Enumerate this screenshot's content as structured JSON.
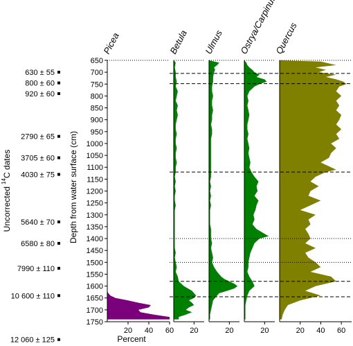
{
  "chart_data": {
    "type": "area",
    "title": "",
    "ylabel": "Depth from water surface (cm)",
    "xlabel": "Percent",
    "left_axis_label_prefix": "Uncorrected",
    "left_axis_label_super": "14",
    "left_axis_label_suffix": "C dates",
    "ylim": [
      650,
      1750
    ],
    "depth_ticks": [
      650,
      700,
      750,
      800,
      850,
      900,
      950,
      1000,
      1050,
      1100,
      1150,
      1200,
      1250,
      1300,
      1350,
      1400,
      1450,
      1500,
      1550,
      1600,
      1650,
      1700,
      1750
    ],
    "depth_tick_labels": [
      "650",
      "700",
      "750",
      "800",
      "850",
      "900",
      "950",
      "1000",
      "1050",
      "1100",
      "1150",
      "1200",
      "1250",
      "1300",
      "1350",
      "1400",
      "1450",
      "1500",
      "1550",
      "1600",
      "1650",
      "1700",
      "1750"
    ],
    "dates": [
      {
        "label": "630 ± 55",
        "depth": 700
      },
      {
        "label": "800 ± 60",
        "depth": 745
      },
      {
        "label": "920 ± 60",
        "depth": 790
      },
      {
        "label": "2790 ± 65",
        "depth": 970
      },
      {
        "label": "3705 ± 60",
        "depth": 1060
      },
      {
        "label": "4030 ± 75",
        "depth": 1130
      },
      {
        "label": "5640 ± 70",
        "depth": 1330
      },
      {
        "label": "6580 ± 80",
        "depth": 1420
      },
      {
        "label": "7990 ± 110",
        "depth": 1525
      },
      {
        "label": "10 600 ± 110",
        "depth": 1640
      },
      {
        "label": "12 060 ± 125",
        "depth": 1825
      }
    ],
    "horizontal_lines": [
      {
        "depth": 705,
        "style": "dashed"
      },
      {
        "depth": 748,
        "style": "dashed"
      },
      {
        "depth": 1120,
        "style": "dashed"
      },
      {
        "depth": 1400,
        "style": "dotted"
      },
      {
        "depth": 1500,
        "style": "dotted"
      },
      {
        "depth": 1580,
        "style": "dashed"
      },
      {
        "depth": 1645,
        "style": "dashed"
      }
    ],
    "series": [
      {
        "name": "Picea",
        "color": "#7b007b",
        "xlim": [
          0,
          60
        ],
        "ticks": [
          20,
          40,
          60
        ],
        "tick_labels": [
          "20",
          "40",
          "60"
        ],
        "points": [
          [
            650,
            0
          ],
          [
            1620,
            0
          ],
          [
            1630,
            1
          ],
          [
            1640,
            3
          ],
          [
            1650,
            8
          ],
          [
            1660,
            20
          ],
          [
            1670,
            30
          ],
          [
            1680,
            42
          ],
          [
            1690,
            40
          ],
          [
            1700,
            30
          ],
          [
            1710,
            32
          ],
          [
            1720,
            45
          ],
          [
            1730,
            60
          ],
          [
            1740,
            60
          ]
        ]
      },
      {
        "name": "Betula",
        "color": "#008000",
        "xlim": [
          0,
          30
        ],
        "ticks": [
          20
        ],
        "tick_labels": [
          "20"
        ],
        "points": [
          [
            650,
            0
          ],
          [
            660,
            2
          ],
          [
            680,
            1
          ],
          [
            700,
            2
          ],
          [
            720,
            2
          ],
          [
            740,
            3
          ],
          [
            760,
            2
          ],
          [
            780,
            4
          ],
          [
            800,
            3
          ],
          [
            820,
            2
          ],
          [
            840,
            4
          ],
          [
            860,
            3
          ],
          [
            880,
            4
          ],
          [
            900,
            3
          ],
          [
            920,
            2
          ],
          [
            940,
            2
          ],
          [
            960,
            3
          ],
          [
            980,
            2
          ],
          [
            1000,
            2
          ],
          [
            1020,
            3
          ],
          [
            1040,
            2
          ],
          [
            1060,
            2
          ],
          [
            1080,
            3
          ],
          [
            1100,
            2
          ],
          [
            1120,
            2
          ],
          [
            1140,
            1
          ],
          [
            1160,
            2
          ],
          [
            1180,
            1
          ],
          [
            1200,
            2
          ],
          [
            1220,
            1
          ],
          [
            1240,
            1
          ],
          [
            1260,
            2
          ],
          [
            1280,
            1
          ],
          [
            1300,
            1
          ],
          [
            1320,
            1
          ],
          [
            1340,
            1
          ],
          [
            1360,
            1
          ],
          [
            1380,
            1
          ],
          [
            1400,
            1
          ],
          [
            1420,
            1
          ],
          [
            1440,
            1
          ],
          [
            1460,
            2
          ],
          [
            1480,
            1
          ],
          [
            1500,
            2
          ],
          [
            1520,
            3
          ],
          [
            1540,
            2
          ],
          [
            1560,
            4
          ],
          [
            1580,
            5
          ],
          [
            1600,
            10
          ],
          [
            1620,
            18
          ],
          [
            1640,
            22
          ],
          [
            1650,
            20
          ],
          [
            1660,
            15
          ],
          [
            1670,
            18
          ],
          [
            1680,
            20
          ],
          [
            1690,
            15
          ],
          [
            1700,
            12
          ],
          [
            1710,
            18
          ],
          [
            1720,
            12
          ],
          [
            1730,
            5
          ],
          [
            1740,
            5
          ]
        ]
      },
      {
        "name": "Ulmus",
        "color": "#008000",
        "xlim": [
          0,
          30
        ],
        "ticks": [
          20
        ],
        "tick_labels": [
          "20"
        ],
        "points": [
          [
            650,
            0
          ],
          [
            660,
            10
          ],
          [
            670,
            8
          ],
          [
            680,
            5
          ],
          [
            690,
            6
          ],
          [
            700,
            5
          ],
          [
            720,
            4
          ],
          [
            740,
            4
          ],
          [
            760,
            3
          ],
          [
            780,
            3
          ],
          [
            800,
            4
          ],
          [
            820,
            3
          ],
          [
            840,
            3
          ],
          [
            860,
            4
          ],
          [
            880,
            3
          ],
          [
            900,
            3
          ],
          [
            920,
            2
          ],
          [
            940,
            3
          ],
          [
            960,
            3
          ],
          [
            980,
            2
          ],
          [
            1000,
            2
          ],
          [
            1020,
            2
          ],
          [
            1040,
            2
          ],
          [
            1060,
            2
          ],
          [
            1080,
            2
          ],
          [
            1100,
            2
          ],
          [
            1120,
            2
          ],
          [
            1140,
            2
          ],
          [
            1160,
            1
          ],
          [
            1180,
            2
          ],
          [
            1200,
            1
          ],
          [
            1220,
            2
          ],
          [
            1240,
            1
          ],
          [
            1260,
            2
          ],
          [
            1280,
            1
          ],
          [
            1300,
            1
          ],
          [
            1320,
            1
          ],
          [
            1340,
            1
          ],
          [
            1360,
            2
          ],
          [
            1380,
            2
          ],
          [
            1400,
            2
          ],
          [
            1420,
            3
          ],
          [
            1440,
            2
          ],
          [
            1460,
            3
          ],
          [
            1480,
            4
          ],
          [
            1500,
            3
          ],
          [
            1520,
            5
          ],
          [
            1540,
            8
          ],
          [
            1560,
            12
          ],
          [
            1570,
            15
          ],
          [
            1580,
            20
          ],
          [
            1590,
            25
          ],
          [
            1600,
            28
          ],
          [
            1610,
            25
          ],
          [
            1620,
            18
          ],
          [
            1630,
            10
          ],
          [
            1640,
            8
          ],
          [
            1660,
            4
          ],
          [
            1680,
            3
          ],
          [
            1700,
            2
          ],
          [
            1720,
            1
          ],
          [
            1740,
            1
          ]
        ]
      },
      {
        "name": "Ostrya/Carpinus",
        "color": "#008000",
        "xlim": [
          0,
          30
        ],
        "ticks": [
          20
        ],
        "tick_labels": [
          "20"
        ],
        "points": [
          [
            650,
            0
          ],
          [
            660,
            2
          ],
          [
            670,
            3
          ],
          [
            680,
            5
          ],
          [
            690,
            8
          ],
          [
            700,
            10
          ],
          [
            710,
            15
          ],
          [
            720,
            12
          ],
          [
            730,
            20
          ],
          [
            740,
            22
          ],
          [
            750,
            15
          ],
          [
            760,
            10
          ],
          [
            780,
            5
          ],
          [
            800,
            3
          ],
          [
            820,
            4
          ],
          [
            840,
            3
          ],
          [
            860,
            4
          ],
          [
            880,
            5
          ],
          [
            900,
            4
          ],
          [
            920,
            3
          ],
          [
            940,
            3
          ],
          [
            960,
            4
          ],
          [
            980,
            3
          ],
          [
            1000,
            4
          ],
          [
            1020,
            5
          ],
          [
            1040,
            4
          ],
          [
            1060,
            5
          ],
          [
            1080,
            6
          ],
          [
            1100,
            5
          ],
          [
            1120,
            7
          ],
          [
            1140,
            10
          ],
          [
            1150,
            12
          ],
          [
            1160,
            14
          ],
          [
            1180,
            12
          ],
          [
            1200,
            13
          ],
          [
            1220,
            10
          ],
          [
            1240,
            14
          ],
          [
            1260,
            12
          ],
          [
            1280,
            11
          ],
          [
            1300,
            9
          ],
          [
            1320,
            10
          ],
          [
            1340,
            8
          ],
          [
            1360,
            12
          ],
          [
            1380,
            20
          ],
          [
            1390,
            24
          ],
          [
            1400,
            15
          ],
          [
            1420,
            10
          ],
          [
            1440,
            8
          ],
          [
            1460,
            6
          ],
          [
            1480,
            5
          ],
          [
            1500,
            4
          ],
          [
            1520,
            4
          ],
          [
            1540,
            3
          ],
          [
            1560,
            5
          ],
          [
            1580,
            8
          ],
          [
            1600,
            10
          ],
          [
            1620,
            5
          ],
          [
            1640,
            3
          ],
          [
            1660,
            2
          ],
          [
            1680,
            1
          ],
          [
            1700,
            1
          ],
          [
            1720,
            1
          ],
          [
            1740,
            1
          ]
        ]
      },
      {
        "name": "Quercus",
        "color": "#808000",
        "xlim": [
          0,
          70
        ],
        "ticks": [
          20,
          40,
          60
        ],
        "tick_labels": [
          "20",
          "40",
          "60"
        ],
        "points": [
          [
            650,
            0
          ],
          [
            655,
            40
          ],
          [
            670,
            55
          ],
          [
            680,
            35
          ],
          [
            690,
            45
          ],
          [
            700,
            38
          ],
          [
            710,
            55
          ],
          [
            720,
            45
          ],
          [
            730,
            55
          ],
          [
            740,
            62
          ],
          [
            750,
            65
          ],
          [
            760,
            58
          ],
          [
            780,
            55
          ],
          [
            800,
            60
          ],
          [
            820,
            55
          ],
          [
            840,
            58
          ],
          [
            860,
            55
          ],
          [
            880,
            60
          ],
          [
            900,
            58
          ],
          [
            920,
            55
          ],
          [
            940,
            60
          ],
          [
            960,
            55
          ],
          [
            980,
            58
          ],
          [
            1000,
            50
          ],
          [
            1020,
            55
          ],
          [
            1040,
            50
          ],
          [
            1060,
            48
          ],
          [
            1080,
            40
          ],
          [
            1100,
            50
          ],
          [
            1110,
            55
          ],
          [
            1120,
            45
          ],
          [
            1140,
            35
          ],
          [
            1160,
            30
          ],
          [
            1180,
            38
          ],
          [
            1200,
            30
          ],
          [
            1220,
            28
          ],
          [
            1240,
            40
          ],
          [
            1260,
            30
          ],
          [
            1280,
            20
          ],
          [
            1300,
            35
          ],
          [
            1320,
            28
          ],
          [
            1340,
            30
          ],
          [
            1360,
            25
          ],
          [
            1380,
            28
          ],
          [
            1400,
            30
          ],
          [
            1420,
            25
          ],
          [
            1440,
            35
          ],
          [
            1460,
            25
          ],
          [
            1480,
            28
          ],
          [
            1500,
            35
          ],
          [
            1520,
            40
          ],
          [
            1540,
            30
          ],
          [
            1560,
            50
          ],
          [
            1580,
            55
          ],
          [
            1600,
            35
          ],
          [
            1620,
            25
          ],
          [
            1640,
            40
          ],
          [
            1650,
            30
          ],
          [
            1660,
            20
          ],
          [
            1680,
            8
          ],
          [
            1700,
            5
          ],
          [
            1720,
            3
          ],
          [
            1740,
            2
          ]
        ]
      }
    ]
  }
}
